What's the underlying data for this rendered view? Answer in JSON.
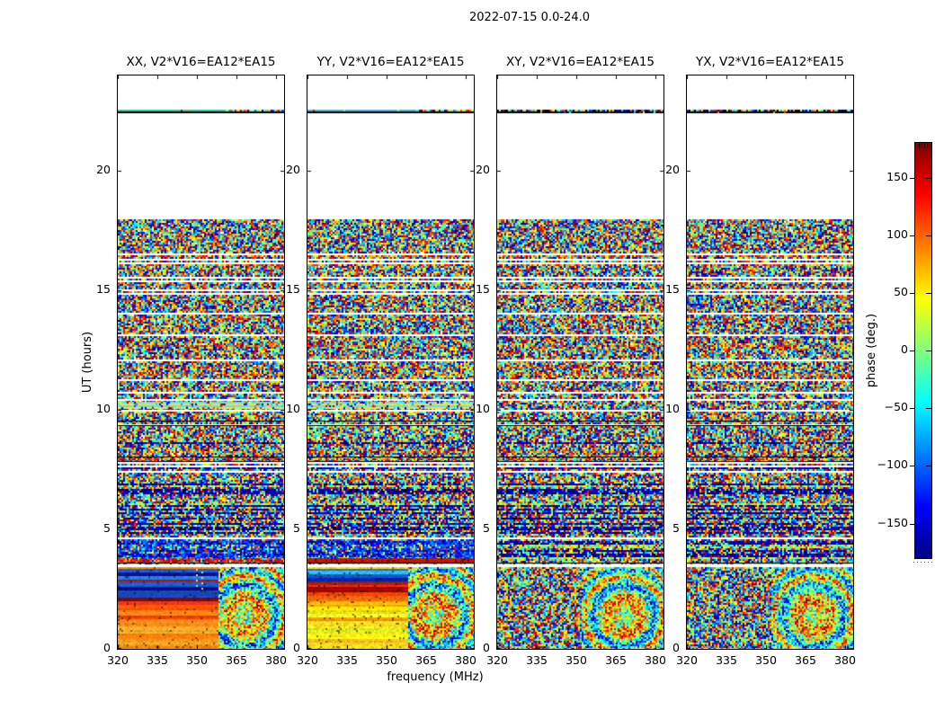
{
  "chart_data": {
    "type": "heatmap",
    "title": "2022-07-15 0.0-24.0",
    "xlabel": "frequency (MHz)",
    "ylabel": "UT (hours)",
    "x_ticks": [
      320,
      335,
      350,
      365,
      380
    ],
    "x_range": [
      320,
      383
    ],
    "y_ticks": [
      0,
      5,
      10,
      15,
      20
    ],
    "y_range": [
      0,
      24
    ],
    "panels": [
      {
        "id": "xx",
        "label": "XX, V2*V16=EA12*EA15",
        "bottom_style": "smooth",
        "satline_color": "#2cc8a4"
      },
      {
        "id": "yy",
        "label": "YY, V2*V16=EA12*EA15",
        "bottom_style": "smooth",
        "satline_color": "#40b4e4"
      },
      {
        "id": "xy",
        "label": "XY, V2*V16=EA12*EA15",
        "bottom_style": "noise",
        "satline_color": "speckle"
      },
      {
        "id": "yx",
        "label": "YX, V2*V16=EA12*EA15",
        "bottom_style": "noise",
        "satline_color": "speckle"
      }
    ],
    "colorbar": {
      "label": "phase (deg.)",
      "colormap": "jet",
      "range": [
        -180,
        180
      ],
      "ticks": [
        {
          "label": "150",
          "value": 150
        },
        {
          "label": "100",
          "value": 100
        },
        {
          "label": "50",
          "value": 50
        },
        {
          "label": "0",
          "value": 0
        },
        {
          "label": "−50",
          "value": -50
        },
        {
          "label": "−100",
          "value": -100
        },
        {
          "label": "−150",
          "value": -150
        }
      ]
    },
    "features": {
      "satline_ut": 22.5,
      "blank_ut_ranges": [
        [
          17.95,
          22.38
        ],
        [
          22.62,
          24.0
        ]
      ],
      "noise_ut_range": [
        3.58,
        17.95
      ],
      "white_bands_ut": [
        [
          9.32,
          9.55
        ],
        [
          7.82,
          8.06
        ]
      ],
      "black_bands_ut": [
        [
          7.56,
          7.82
        ]
      ],
      "pre_gap_white_ut": [
        3.42,
        3.58
      ],
      "smooth_bottom_ut_range": [
        0,
        3.42
      ],
      "smooth_freq_fraction": 0.6,
      "xx_bottom_stripes": [
        [
          3.42,
          3.26,
          "#1a5ad2"
        ],
        [
          3.26,
          3.1,
          "#001290"
        ],
        [
          3.1,
          2.96,
          "#2e7ee8"
        ],
        [
          2.96,
          2.86,
          "#a81400"
        ],
        [
          2.86,
          2.66,
          "#1e58cc"
        ],
        [
          2.66,
          2.46,
          "#000e7e"
        ],
        [
          2.46,
          2.2,
          "#1846b6"
        ],
        [
          2.2,
          2.06,
          "#8c0600"
        ],
        [
          2.06,
          1.88,
          "#e63214"
        ],
        [
          1.88,
          1.66,
          "#ff5a00"
        ],
        [
          1.66,
          1.44,
          "#ff7e14"
        ],
        [
          1.44,
          1.26,
          "#ea4200"
        ],
        [
          1.26,
          0.96,
          "#ff8c16"
        ],
        [
          0.96,
          0.66,
          "#ffae2a"
        ],
        [
          0.66,
          0.42,
          "#ff7c0a"
        ],
        [
          0.42,
          0.18,
          "#ffa620"
        ],
        [
          0.18,
          0.0,
          "#ff8a00"
        ]
      ],
      "yy_bottom_stripes": [
        [
          3.42,
          3.3,
          "#2064d2"
        ],
        [
          3.3,
          3.16,
          "#2ab2e2"
        ],
        [
          3.16,
          3.02,
          "#1a54ca"
        ],
        [
          3.02,
          2.88,
          "#0022a2"
        ],
        [
          2.88,
          2.74,
          "#b01c00"
        ],
        [
          2.74,
          2.6,
          "#e22e00"
        ],
        [
          2.6,
          2.44,
          "#a40600"
        ],
        [
          2.44,
          2.22,
          "#f04600"
        ],
        [
          2.22,
          2.02,
          "#ff6e00"
        ],
        [
          2.02,
          1.82,
          "#ffb400"
        ],
        [
          1.82,
          1.6,
          "#ffe200"
        ],
        [
          1.6,
          1.38,
          "#f0ec2a"
        ],
        [
          1.38,
          1.24,
          "#ff9800"
        ],
        [
          1.24,
          0.94,
          "#ffe820"
        ],
        [
          0.94,
          0.72,
          "#d8ec1e"
        ],
        [
          0.72,
          0.46,
          "#fff016"
        ],
        [
          0.46,
          0.22,
          "#ffc820"
        ],
        [
          0.22,
          0.0,
          "#ffe20c"
        ]
      ]
    }
  }
}
